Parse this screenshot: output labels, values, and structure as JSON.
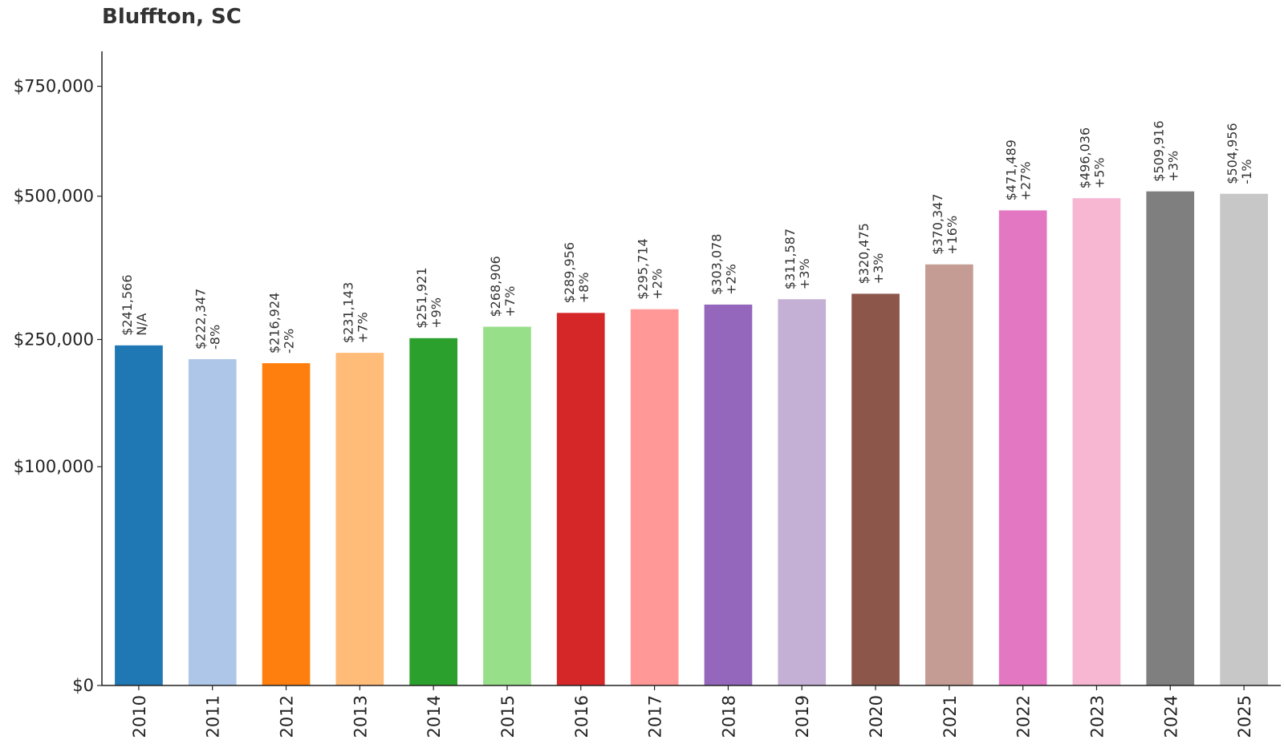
{
  "chart_data": {
    "type": "bar",
    "title": "Bluffton, SC",
    "xlabel": "",
    "ylabel": "",
    "categories": [
      "2010",
      "2011",
      "2012",
      "2013",
      "2014",
      "2015",
      "2016",
      "2017",
      "2018",
      "2019",
      "2020",
      "2021",
      "2022",
      "2023",
      "2024",
      "2025"
    ],
    "values": [
      241566,
      222347,
      216924,
      231143,
      251921,
      268906,
      289956,
      295714,
      303078,
      311587,
      320475,
      370347,
      471489,
      496036,
      509916,
      504956
    ],
    "value_labels": [
      "$241,566",
      "$222,347",
      "$216,924",
      "$231,143",
      "$251,921",
      "$268,906",
      "$289,956",
      "$295,714",
      "$303,078",
      "$311,587",
      "$320,475",
      "$370,347",
      "$471,489",
      "$496,036",
      "$509,916",
      "$504,956"
    ],
    "change_labels": [
      "N/A",
      "-8%",
      "-2%",
      "+7%",
      "+9%",
      "+7%",
      "+8%",
      "+2%",
      "+2%",
      "+3%",
      "+3%",
      "+16%",
      "+27%",
      "+5%",
      "+3%",
      "-1%"
    ],
    "colors": [
      "#1f77b4",
      "#aec7e8",
      "#ff7f0e",
      "#ffbb78",
      "#2ca02c",
      "#98df8a",
      "#d62728",
      "#ff9896",
      "#9467bd",
      "#c5b0d5",
      "#8c564b",
      "#c49c94",
      "#e377c2",
      "#f7b6d2",
      "#7f7f7f",
      "#c7c7c7"
    ],
    "y_ticks": [
      0,
      100000,
      250000,
      500000,
      750000
    ],
    "y_tick_labels": [
      "$0",
      "$100,000",
      "$250,000",
      "$500,000",
      "$750,000"
    ],
    "y_scale": "sqrt",
    "ylim": [
      0,
      840000
    ],
    "grid": false,
    "legend": "none"
  }
}
